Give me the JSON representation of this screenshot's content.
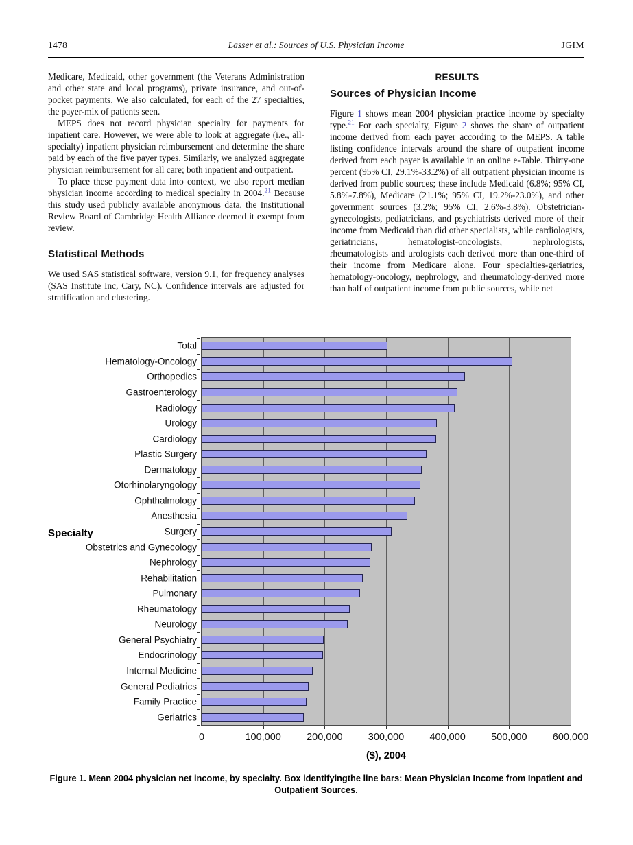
{
  "header": {
    "page_number": "1478",
    "running_title": "Lasser et al.: Sources of U.S. Physician Income",
    "journal": "JGIM"
  },
  "left_column": {
    "para1": "Medicare, Medicaid, other government (the Veterans Administration and other state and local programs), private insurance, and out-of-pocket payments. We also calculated, for each of the 27 specialties, the payer-mix of patients seen.",
    "para2": "MEPS does not record physician specialty for payments for inpatient care. However, we were able to look at aggregate (i.e., all-specialty) inpatient physician reimbursement and determine the share paid by each of the five payer types. Similarly, we analyzed aggregate physician reimbursement for all care; both inpatient and outpatient.",
    "para3_pre": "To place these payment data into context, we also report median physician income according to medical specialty in 2004.",
    "para3_ref": "21",
    "para3_post": " Because this study used publicly available anonymous data, the Institutional Review Board of Cambridge Health Alliance deemed it exempt from review.",
    "methods_heading": "Statistical Methods",
    "methods_para": "We used SAS statistical software, version 9.1, for frequency analyses (SAS Institute Inc, Cary, NC). Confidence intervals are adjusted for stratification and clustering."
  },
  "right_column": {
    "results_heading": "RESULTS",
    "section_heading": "Sources of Physician Income",
    "p1": "Figure ",
    "fig1_ref": "1",
    "p2": " shows mean 2004 physician practice income by specialty type.",
    "note21_ref": "21",
    "p3": " For each specialty, Figure ",
    "fig2_ref": "2",
    "p4": " shows the share of outpatient income derived from each payer according to the MEPS. A table listing confidence intervals around the share of outpatient income derived from each payer is available in an online e-Table. Thirty-one percent (95% CI, 29.1%-33.2%) of all outpatient physician income is derived from public sources; these include Medicaid (6.8%; 95% CI, 5.8%-7.8%), Medicare (21.1%; 95% CI, 19.2%-23.0%), and other government sources (3.2%; 95% CI, 2.6%-3.8%). Obstetrician-gynecologists, pediatricians, and psychiatrists derived more of their income from Medicaid than did other specialists, while cardiologists, geriatricians, hematologist-oncologists, nephrologists, rheumatologists and urologists each derived more than one-third of their income from Medicare alone. Four specialties-geriatrics, hematology-oncology, nephrology, and rheumatology-derived more than half of outpatient income from public sources, while net"
  },
  "chart_data": {
    "type": "bar",
    "orientation": "horizontal",
    "title": "",
    "ylabel": "Specialty",
    "xlabel": "($), 2004",
    "xlim": [
      0,
      600000
    ],
    "xticks": [
      0,
      100000,
      200000,
      300000,
      400000,
      500000,
      600000
    ],
    "xtick_labels": [
      "0",
      "100,000",
      "200,000",
      "300,000",
      "400,000",
      "500,000",
      "600,000"
    ],
    "grid": true,
    "legend": "none",
    "categories": [
      "Total",
      "Hematology-Oncology",
      "Orthopedics",
      "Gastroenterology",
      "Radiology",
      "Urology",
      "Cardiology",
      "Plastic Surgery",
      "Dermatology",
      "Otorhinolaryngology",
      "Ophthalmology",
      "Anesthesia",
      "Surgery",
      "Obstetrics and Gynecology",
      "Nephrology",
      "Rehabilitation",
      "Pulmonary",
      "Rheumatology",
      "Neurology",
      "General Psychiatry",
      "Endocrinology",
      "Internal Medicine",
      "General Pediatrics",
      "Family Practice",
      "Geriatrics"
    ],
    "values": [
      301000,
      504000,
      427000,
      415000,
      410000,
      381000,
      380000,
      365000,
      357000,
      355000,
      346000,
      334000,
      308000,
      275000,
      273000,
      261000,
      257000,
      240000,
      236000,
      197000,
      196000,
      180000,
      173000,
      170000,
      165000
    ],
    "bar_color": "#9b9aec",
    "bar_border_color": "#23234e",
    "plot_bg": "#c2c2c2",
    "gridline_color": "#5e5e5e"
  },
  "caption": "Figure 1.  Mean 2004 physician net income, by specialty. Box identifyingthe line bars: Mean Physician Income from Inpatient and Outpatient Sources."
}
